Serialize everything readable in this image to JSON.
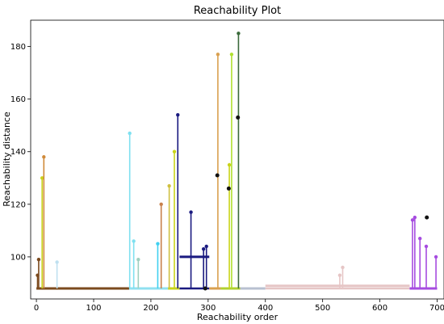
{
  "chart_data": {
    "type": "line",
    "title": "Reachability Plot",
    "xlabel": "Reachability order",
    "ylabel": "Reachability distance",
    "xlim": [
      -10,
      712
    ],
    "ylim": [
      84,
      190
    ],
    "xticks": [
      0,
      100,
      200,
      300,
      400,
      500,
      600,
      700
    ],
    "yticks": [
      100,
      120,
      140,
      160,
      180
    ],
    "grid": false,
    "baseline": 88,
    "segments": [
      {
        "color": "#7b4a1e",
        "x0": 0,
        "x1": 162
      },
      {
        "color": "#8fe0f0",
        "x0": 162,
        "x1": 232
      },
      {
        "color": "#c9d41a",
        "x0": 230,
        "x1": 250
      },
      {
        "color": "#1a1a80",
        "x0": 250,
        "x1": 302,
        "level": 100
      },
      {
        "color": "#d9a050",
        "x0": 302,
        "x1": 322
      },
      {
        "color": "#b0d030",
        "x0": 322,
        "x1": 356
      },
      {
        "color": "#b8c0d0",
        "x0": 356,
        "x1": 400
      },
      {
        "color": "#e6c6c6",
        "x0": 400,
        "x1": 652,
        "level": 89
      },
      {
        "color": "#a64ce0",
        "x0": 652,
        "x1": 700
      }
    ],
    "spikes": [
      {
        "x": 2,
        "y": 93,
        "color": "#7b4a1e"
      },
      {
        "x": 4,
        "y": 99,
        "color": "#7b4a1e"
      },
      {
        "x": 10,
        "y": 130,
        "color": "#c9d41a"
      },
      {
        "x": 13,
        "y": 138,
        "color": "#d08a3a"
      },
      {
        "x": 36,
        "y": 98,
        "color": "#bfe0f0"
      },
      {
        "x": 163,
        "y": 147,
        "color": "#7ee0f0"
      },
      {
        "x": 170,
        "y": 106,
        "color": "#7ee0f0"
      },
      {
        "x": 178,
        "y": 99,
        "color": "#a0d0c0"
      },
      {
        "x": 212,
        "y": 105,
        "color": "#40d0f0"
      },
      {
        "x": 218,
        "y": 120,
        "color": "#c8804a"
      },
      {
        "x": 232,
        "y": 127,
        "color": "#d0c040"
      },
      {
        "x": 241,
        "y": 140,
        "color": "#c9d41a"
      },
      {
        "x": 247,
        "y": 154,
        "color": "#1a1a80"
      },
      {
        "x": 270,
        "y": 117,
        "color": "#1a1a80"
      },
      {
        "x": 292,
        "y": 103,
        "color": "#1a1a80"
      },
      {
        "x": 297,
        "y": 104,
        "color": "#1a1a80"
      },
      {
        "x": 317,
        "y": 177,
        "color": "#d9a050"
      },
      {
        "x": 337,
        "y": 135,
        "color": "#c9d41a"
      },
      {
        "x": 341,
        "y": 177,
        "color": "#b0e030"
      },
      {
        "x": 353,
        "y": 185,
        "color": "#3a6a3a"
      },
      {
        "x": 530,
        "y": 93,
        "color": "#e6c6c6"
      },
      {
        "x": 535,
        "y": 96,
        "color": "#e6c6c6"
      },
      {
        "x": 657,
        "y": 114,
        "color": "#a64ce0"
      },
      {
        "x": 661,
        "y": 115,
        "color": "#a64ce0"
      },
      {
        "x": 670,
        "y": 107,
        "color": "#a64ce0"
      },
      {
        "x": 681,
        "y": 104,
        "color": "#a64ce0"
      },
      {
        "x": 698,
        "y": 100,
        "color": "#a64ce0"
      }
    ],
    "noise_points": [
      {
        "x": 316,
        "y": 131
      },
      {
        "x": 336,
        "y": 126
      },
      {
        "x": 352,
        "y": 153
      },
      {
        "x": 682,
        "y": 115
      },
      {
        "x": 295,
        "y": 88
      }
    ]
  }
}
